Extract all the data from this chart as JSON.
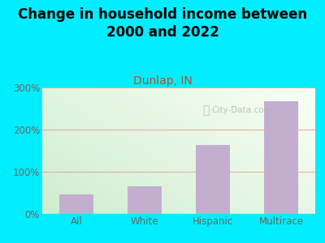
{
  "title": "Change in household income between\n2000 and 2022",
  "subtitle": "Dunlap, IN",
  "categories": [
    "All",
    "White",
    "Hispanic",
    "Multirace"
  ],
  "values": [
    47,
    65,
    163,
    268
  ],
  "bar_color": "#c4aed0",
  "background_outer": "#00eeff",
  "title_fontsize": 12,
  "title_fontweight": "bold",
  "subtitle_fontsize": 10,
  "subtitle_color": "#b05030",
  "tick_label_color": "#666666",
  "ylim": [
    0,
    300
  ],
  "yticks": [
    0,
    100,
    200,
    300
  ],
  "ytick_labels": [
    "0%",
    "100%",
    "200%",
    "300%"
  ],
  "grid_color": "#f0a0a0",
  "watermark": "City-Data.com",
  "bg_top_left": "#d8eeda",
  "bg_top_right": "#eef8ee",
  "bg_bottom_left": "#c8e8cc",
  "bg_bottom_right": "#f0faf0"
}
